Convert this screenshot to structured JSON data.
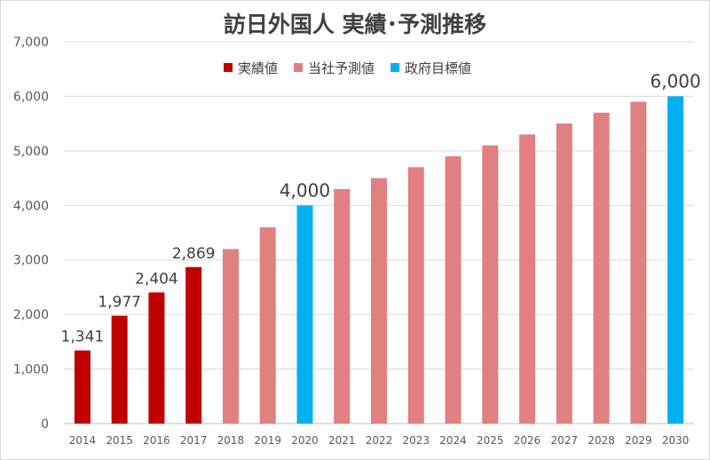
{
  "chart_data": {
    "type": "bar",
    "title": "訪日外国人 実績･予測推移",
    "xlabel": "",
    "ylabel": "",
    "ylim": [
      0,
      7000
    ],
    "y_ticks": [
      0,
      1000,
      2000,
      3000,
      4000,
      5000,
      6000,
      7000
    ],
    "y_tick_labels": [
      "0",
      "1,000",
      "2,000",
      "3,000",
      "4,000",
      "5,000",
      "6,000",
      "7,000"
    ],
    "grid": true,
    "legend_position": "top",
    "categories": [
      "2014",
      "2015",
      "2016",
      "2017",
      "2018",
      "2019",
      "2020",
      "2021",
      "2022",
      "2023",
      "2024",
      "2025",
      "2026",
      "2027",
      "2028",
      "2029",
      "2030"
    ],
    "values": [
      1341,
      1977,
      2404,
      2869,
      3200,
      3600,
      4000,
      4300,
      4500,
      4700,
      4900,
      5100,
      5300,
      5500,
      5700,
      5900,
      6000
    ],
    "bar_series": [
      0,
      0,
      0,
      0,
      1,
      1,
      2,
      1,
      1,
      1,
      1,
      1,
      1,
      1,
      1,
      1,
      2
    ],
    "series": [
      {
        "name": "実績値",
        "color": "#c00000"
      },
      {
        "name": "当社予測値",
        "color": "#e08080"
      },
      {
        "name": "政府目標値",
        "color": "#00b0f0"
      }
    ],
    "data_labels": [
      {
        "index": 0,
        "text": "1,341"
      },
      {
        "index": 1,
        "text": "1,977"
      },
      {
        "index": 2,
        "text": "2,404"
      },
      {
        "index": 3,
        "text": "2,869"
      },
      {
        "index": 6,
        "text": "4,000",
        "emphasis": true
      },
      {
        "index": 16,
        "text": "6,000",
        "emphasis": true
      }
    ]
  }
}
